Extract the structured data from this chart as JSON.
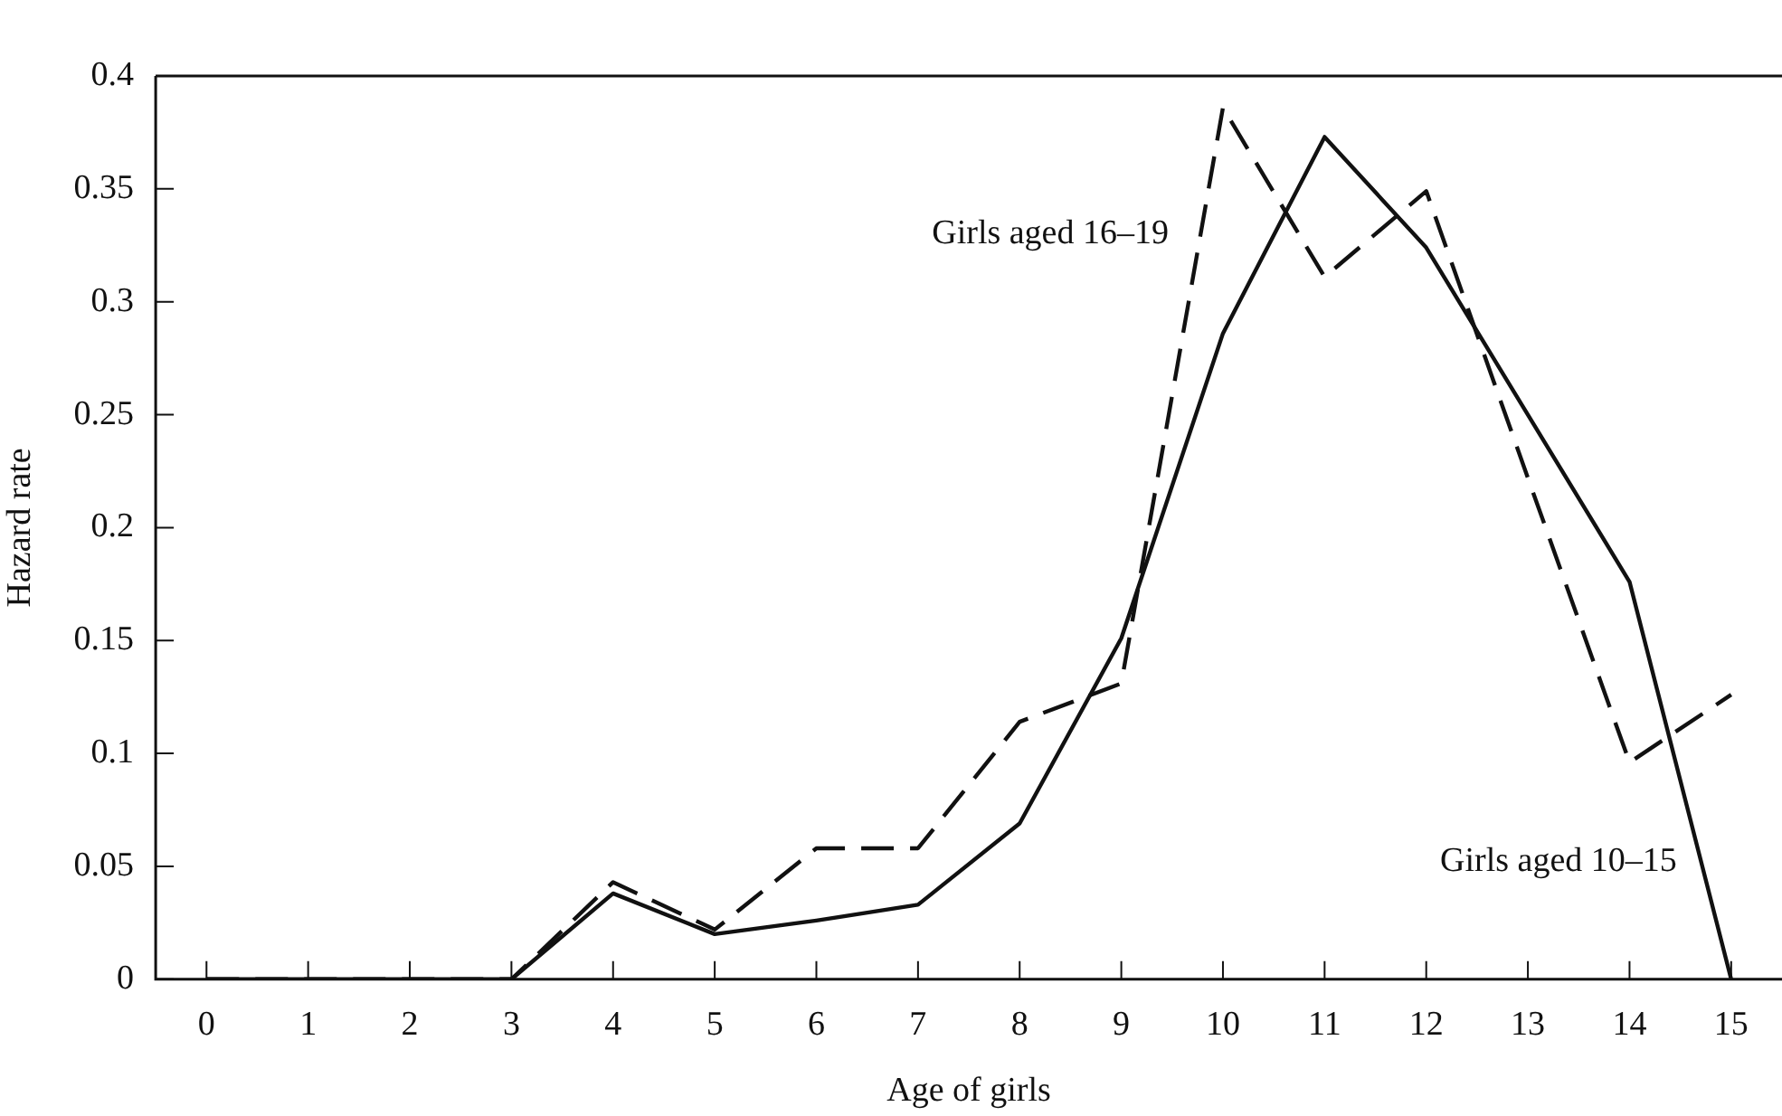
{
  "chart_data": {
    "type": "line",
    "xlabel": "Age of girls",
    "ylabel": "Hazard rate",
    "x": [
      0,
      1,
      2,
      3,
      4,
      5,
      6,
      7,
      8,
      9,
      10,
      11,
      12,
      13,
      14,
      15
    ],
    "series": [
      {
        "name": "Girls aged 10–15",
        "color": "#111111",
        "line_style": "solid",
        "values": [
          0,
          0,
          0,
          0,
          0.038,
          0.02,
          0.026,
          0.033,
          0.069,
          0.151,
          0.286,
          0.373,
          0.324,
          0.25,
          0.176,
          0
        ]
      },
      {
        "name": "Girls aged 16–19",
        "color": "#111111",
        "line_style": "dashed",
        "values": [
          0,
          0,
          0,
          0,
          0.043,
          0.022,
          0.058,
          0.058,
          0.114,
          0.131,
          0.386,
          0.311,
          0.349,
          0.222,
          0.096,
          0.126
        ]
      }
    ],
    "xlim": [
      -0.5,
      15.5
    ],
    "xticks": [
      0,
      1,
      2,
      3,
      4,
      5,
      6,
      7,
      8,
      9,
      10,
      11,
      12,
      13,
      14,
      15
    ],
    "ylim": [
      0,
      0.4
    ],
    "yticks": [
      0,
      0.05,
      0.1,
      0.15,
      0.2,
      0.25,
      0.3,
      0.35,
      0.4
    ],
    "grid": false,
    "legend": false,
    "marker": "none"
  }
}
